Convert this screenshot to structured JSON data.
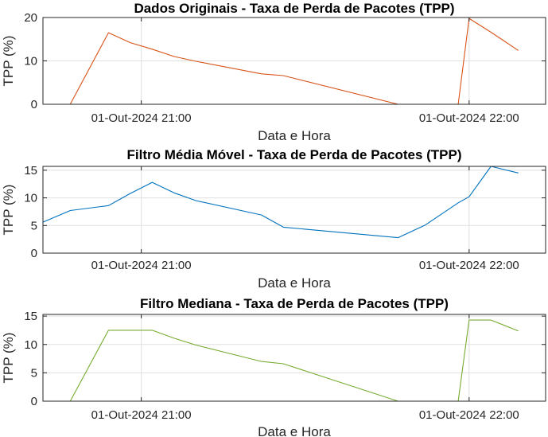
{
  "chart_data": [
    {
      "type": "line",
      "title": "Dados Originais - Taxa de Perda de Pacotes (TPP)",
      "xlabel": "Data e Hora",
      "ylabel": "TPP (%)",
      "xlim": [
        "20:42",
        "22:14"
      ],
      "ylim": [
        0,
        20
      ],
      "xticks": [
        "21:00",
        "22:00"
      ],
      "xtick_labels": [
        "01-Out-2024 21:00",
        "01-Out-2024 22:00"
      ],
      "yticks": [
        0,
        10,
        20
      ],
      "ytick_labels": [
        "0",
        "10",
        "20"
      ],
      "grid": true,
      "color": "#D95319",
      "series": [
        {
          "x": [
            "20:42",
            "20:47",
            "20:54",
            "20:58",
            "21:02",
            "21:06",
            "21:10",
            "21:22",
            "21:26",
            "21:47",
            "21:58",
            "22:00",
            "22:04",
            "22:09"
          ],
          "y": [
            0,
            0,
            16.5,
            14.2,
            12.7,
            11.0,
            9.9,
            7.0,
            6.6,
            0,
            0,
            19.8,
            16.6,
            12.4
          ]
        }
      ]
    },
    {
      "type": "line",
      "title": "Filtro Média Móvel - Taxa de Perda de Pacotes (TPP)",
      "xlabel": "Data e Hora",
      "ylabel": "TPP (%)",
      "xlim": [
        "20:42",
        "22:14"
      ],
      "ylim": [
        0,
        15.7
      ],
      "xticks": [
        "21:00",
        "22:00"
      ],
      "xtick_labels": [
        "01-Out-2024 21:00",
        "01-Out-2024 22:00"
      ],
      "yticks": [
        0,
        5,
        10,
        15
      ],
      "ytick_labels": [
        "0",
        "5",
        "10",
        "15"
      ],
      "grid": true,
      "color": "#0072BD",
      "series": [
        {
          "x": [
            "20:42",
            "20:47",
            "20:54",
            "20:58",
            "21:02",
            "21:06",
            "21:10",
            "21:22",
            "21:26",
            "21:47",
            "21:52",
            "21:58",
            "22:00",
            "22:04",
            "22:09"
          ],
          "y": [
            5.6,
            7.7,
            8.6,
            10.8,
            12.8,
            10.9,
            9.5,
            6.9,
            4.7,
            2.8,
            5.1,
            9.1,
            10.2,
            15.7,
            14.5
          ]
        }
      ]
    },
    {
      "type": "line",
      "title": "Filtro Mediana - Taxa de Perda de Pacotes (TPP)",
      "xlabel": "Data e Hora",
      "ylabel": "TPP (%)",
      "xlim": [
        "20:42",
        "22:14"
      ],
      "ylim": [
        0,
        15.3
      ],
      "xticks": [
        "21:00",
        "22:00"
      ],
      "xtick_labels": [
        "01-Out-2024 21:00",
        "01-Out-2024 22:00"
      ],
      "yticks": [
        0,
        5,
        10,
        15
      ],
      "ytick_labels": [
        "0",
        "5",
        "10",
        "15"
      ],
      "grid": true,
      "color": "#77AC30",
      "series": [
        {
          "x": [
            "20:42",
            "20:47",
            "20:54",
            "20:58",
            "21:02",
            "21:06",
            "21:10",
            "21:22",
            "21:26",
            "21:47",
            "21:58",
            "22:00",
            "22:04",
            "22:09"
          ],
          "y": [
            0,
            0,
            12.5,
            12.5,
            12.5,
            11.1,
            9.9,
            7.0,
            6.6,
            0,
            0,
            14.3,
            14.3,
            12.4
          ]
        }
      ]
    }
  ]
}
